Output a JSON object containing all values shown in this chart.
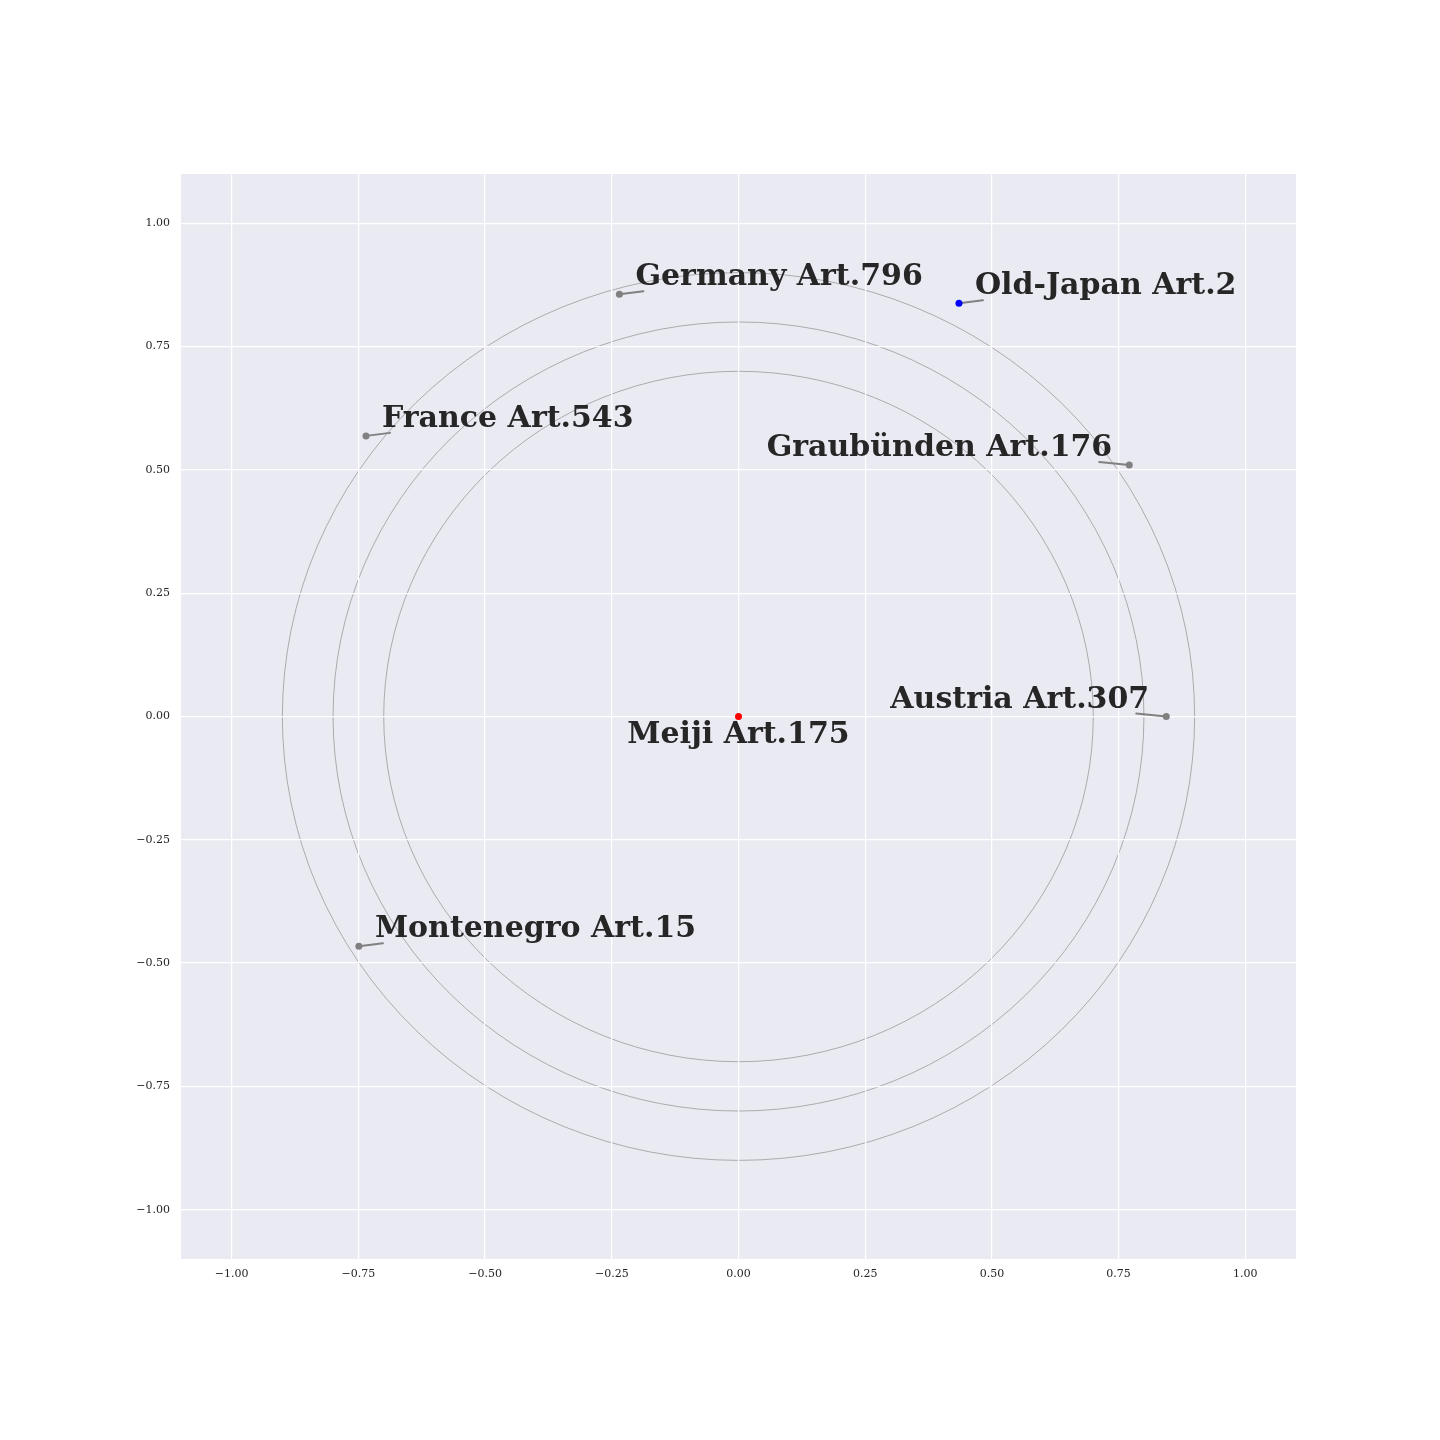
{
  "chart_data": {
    "type": "scatter",
    "xlim": [
      -1.1,
      1.1
    ],
    "ylim": [
      -1.1,
      1.1
    ],
    "xticks": [
      {
        "value": -1,
        "label": "−1.00"
      },
      {
        "value": -0.75,
        "label": "−0.75"
      },
      {
        "value": -0.5,
        "label": "−0.50"
      },
      {
        "value": -0.25,
        "label": "−0.25"
      },
      {
        "value": 0,
        "label": "0.00"
      },
      {
        "value": 0.25,
        "label": "0.25"
      },
      {
        "value": 0.5,
        "label": "0.50"
      },
      {
        "value": 0.75,
        "label": "0.75"
      },
      {
        "value": 1,
        "label": "1.00"
      }
    ],
    "yticks": [
      {
        "value": -1,
        "label": "−1.00"
      },
      {
        "value": -0.75,
        "label": "−0.75"
      },
      {
        "value": -0.5,
        "label": "−0.50"
      },
      {
        "value": -0.25,
        "label": "−0.25"
      },
      {
        "value": 0,
        "label": "0.00"
      },
      {
        "value": 0.25,
        "label": "0.25"
      },
      {
        "value": 0.5,
        "label": "0.50"
      },
      {
        "value": 0.75,
        "label": "0.75"
      },
      {
        "value": 1,
        "label": "1.00"
      }
    ],
    "grid": true,
    "legend": false,
    "marker": "circle",
    "x": [
      0,
      0.435,
      -0.235,
      -0.735,
      0.771,
      0.844,
      -0.749
    ],
    "values": [
      0,
      0.838,
      0.856,
      0.569,
      0.51,
      0,
      -0.466
    ],
    "colors": [
      "#ff0000",
      "#0000ff",
      "#808080",
      "#808080",
      "#808080",
      "#808080",
      "#808080"
    ],
    "annotations": [
      {
        "text": "Meiji Art.175",
        "x": 0,
        "y": 0
      },
      {
        "text": "Old-Japan Art.2",
        "x": 0.435,
        "y": 0.838
      },
      {
        "text": "Germany Art.796",
        "x": -0.235,
        "y": 0.856
      },
      {
        "text": "France Art.543",
        "x": -0.735,
        "y": 0.569
      },
      {
        "text": "Graubünden Art.176",
        "x": 0.771,
        "y": 0.51
      },
      {
        "text": "Austria Art.307",
        "x": 0.844,
        "y": 0
      },
      {
        "text": "Montenegro Art.15",
        "x": -0.749,
        "y": -0.466
      }
    ]
  }
}
